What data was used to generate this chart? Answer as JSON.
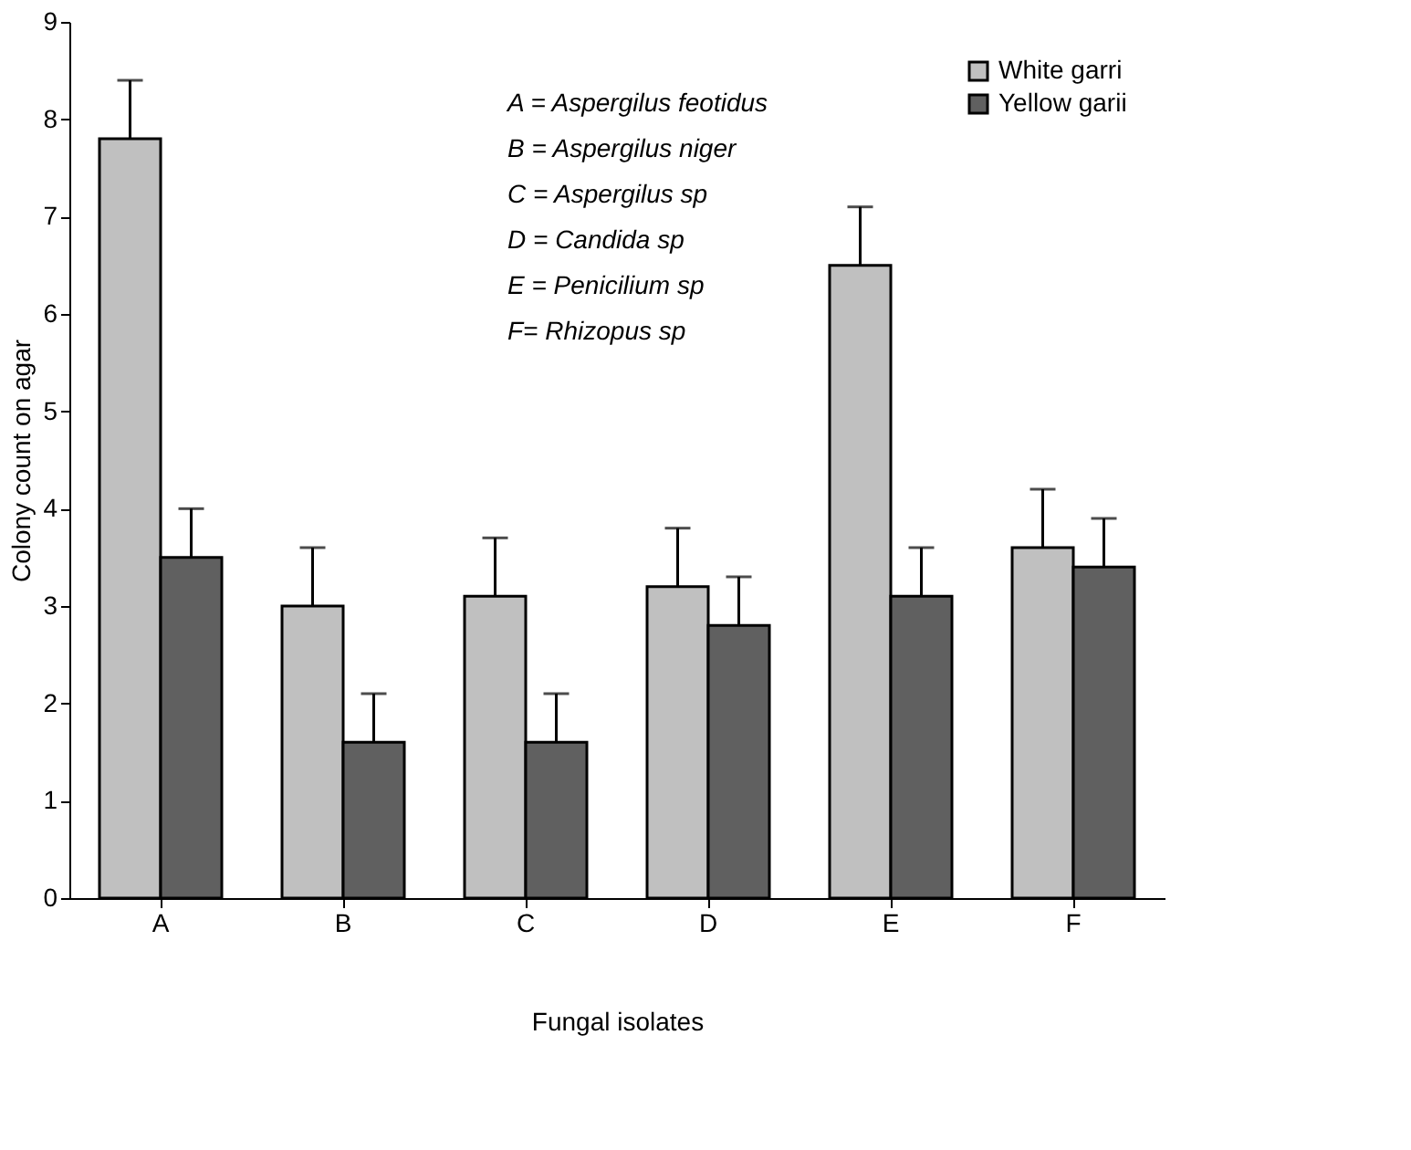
{
  "chart_data": {
    "type": "bar",
    "xlabel": "Fungal isolates",
    "ylabel": "Colony count on agar",
    "categories": [
      "A",
      "B",
      "C",
      "D",
      "E",
      "F"
    ],
    "series": [
      {
        "name": "White garri",
        "color": "#c0c0c0",
        "values": [
          7.8,
          3.0,
          3.1,
          3.2,
          6.5,
          3.6
        ],
        "errors": [
          [
            7.8,
            8.4
          ],
          [
            3.0,
            3.6
          ],
          [
            3.1,
            3.7
          ],
          [
            3.2,
            3.8
          ],
          [
            6.5,
            7.1
          ],
          [
            3.6,
            4.2
          ]
        ]
      },
      {
        "name": "Yellow garii",
        "color": "#606060",
        "values": [
          3.5,
          1.6,
          1.6,
          2.8,
          3.1,
          3.4
        ],
        "errors": [
          [
            3.5,
            4.0
          ],
          [
            1.6,
            2.1
          ],
          [
            1.6,
            2.1
          ],
          [
            2.8,
            3.3
          ],
          [
            3.1,
            3.6
          ],
          [
            3.4,
            3.9
          ]
        ]
      }
    ],
    "ylim": [
      0,
      9
    ],
    "yticks": [
      0,
      1,
      2,
      3,
      4,
      5,
      6,
      7,
      8,
      9
    ],
    "grid": false,
    "legend": "top right",
    "annotations": [
      "A =  Aspergilus feotidus",
      "B = Aspergilus niger",
      "C = Aspergilus sp",
      "D = Candida sp",
      "E = Penicilium sp",
      "F= Rhizopus sp"
    ]
  }
}
